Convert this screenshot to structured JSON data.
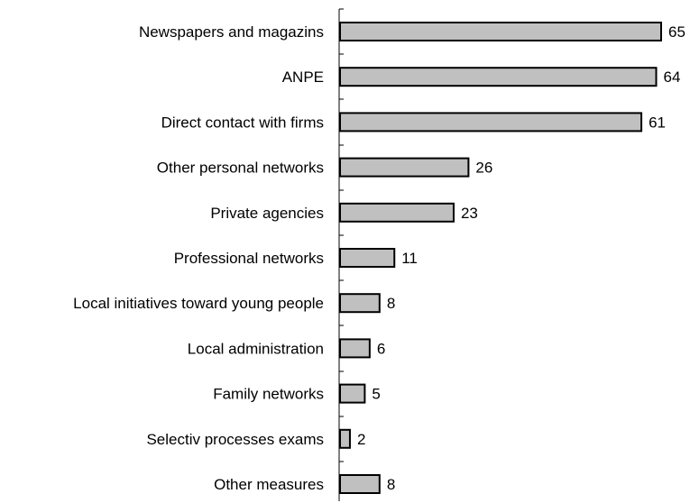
{
  "chart_data": {
    "type": "bar",
    "orientation": "horizontal",
    "categories": [
      "Newspapers and magazins",
      "ANPE",
      "Direct contact with firms",
      "Other personal networks",
      "Private agencies",
      "Professional networks",
      "Local initiatives toward young people",
      "Local administration",
      "Family networks",
      "Selectiv processes exams",
      "Other measures"
    ],
    "values": [
      65,
      64,
      61,
      26,
      23,
      11,
      8,
      6,
      5,
      2,
      8
    ],
    "value_labels": [
      "65",
      "64",
      "61",
      "26",
      "23",
      "11",
      "8",
      "6",
      "5",
      "2",
      "8"
    ],
    "xlim": [
      0,
      65
    ],
    "bar_color": "#c0c0c0",
    "bar_edge_color": "#000000",
    "grid": false,
    "legend": "none"
  }
}
